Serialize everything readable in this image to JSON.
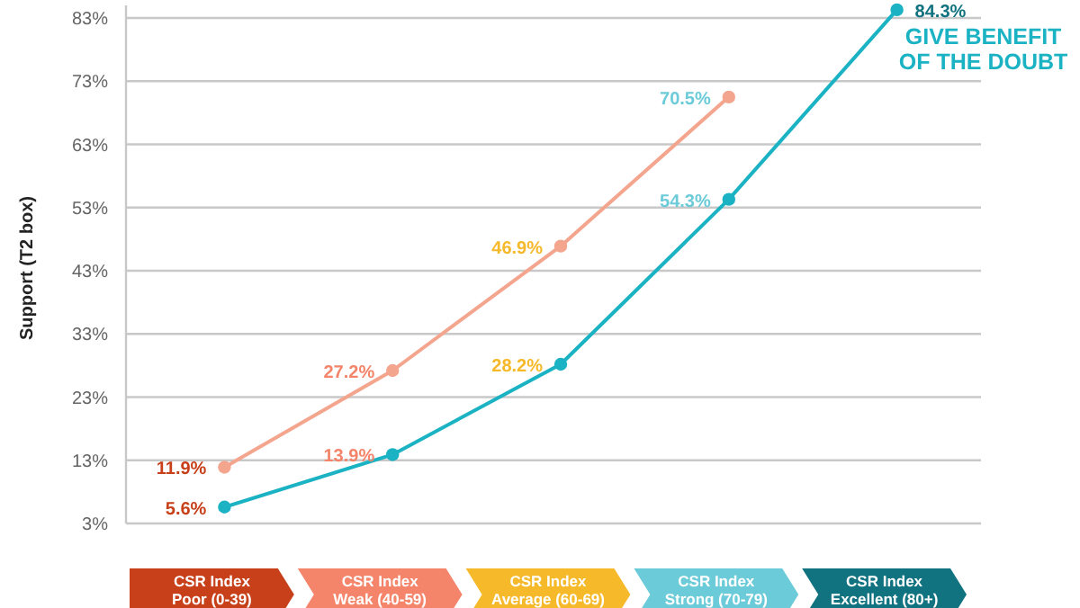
{
  "chart_data": {
    "type": "line",
    "ylabel": "Support (T2 box)",
    "categories": [
      "CSR Index\nPoor (0-39)",
      "CSR Index\nWeak (40-59)",
      "CSR Index\nAverage (60-69)",
      "CSR Index\nStrong (70-79)",
      "CSR Index\nExcellent (80+)"
    ],
    "ylim": [
      3,
      85
    ],
    "yticks": [
      {
        "value": 3,
        "label": "3%"
      },
      {
        "value": 13,
        "label": "13%"
      },
      {
        "value": 23,
        "label": "23%"
      },
      {
        "value": 33,
        "label": "33%"
      },
      {
        "value": 43,
        "label": "43%"
      },
      {
        "value": 53,
        "label": "53%"
      },
      {
        "value": 63,
        "label": "63%"
      },
      {
        "value": 73,
        "label": "73%"
      },
      {
        "value": 83,
        "label": "83%"
      }
    ],
    "grid": "y",
    "marker": "circle",
    "line_style": "solid",
    "series": [
      {
        "color": "#f4a58e",
        "values": [
          11.9,
          27.2,
          46.9,
          70.5,
          null
        ],
        "value_labels": [
          "11.9%",
          "27.2%",
          "46.9%",
          "70.5%",
          null
        ]
      },
      {
        "name": "GIVE BENEFIT OF THE DOUBT",
        "color": "#1bb3c4",
        "values": [
          5.6,
          13.9,
          28.2,
          54.3,
          84.3
        ],
        "value_labels": [
          "5.6%",
          "13.9%",
          "28.2%",
          "54.3%",
          "84.3%"
        ]
      }
    ]
  }
}
